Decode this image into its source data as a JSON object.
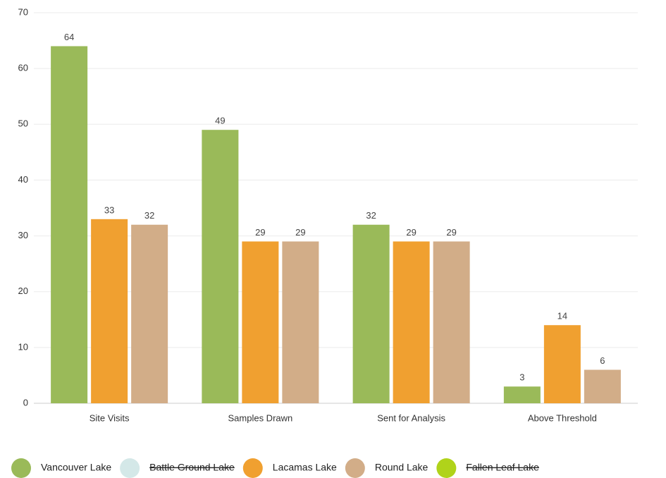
{
  "chart_data": {
    "type": "bar",
    "categories": [
      "Site Visits",
      "Samples Drawn",
      "Sent for Analysis",
      "Above Threshold"
    ],
    "series": [
      {
        "name": "Vancouver Lake",
        "color": "#9aba59",
        "values": [
          64,
          49,
          32,
          3
        ]
      },
      {
        "name": "Battle Ground Lake",
        "color": "#d4e8e8",
        "values": [
          null,
          null,
          null,
          null
        ],
        "hidden": true
      },
      {
        "name": "Lacamas Lake",
        "color": "#f0a030",
        "values": [
          33,
          29,
          29,
          14
        ]
      },
      {
        "name": "Round Lake",
        "color": "#d2ad88",
        "values": [
          32,
          29,
          29,
          6
        ]
      },
      {
        "name": "Fallen Leaf Lake",
        "color": "#b0d31a",
        "values": [
          null,
          null,
          null,
          null
        ],
        "hidden": true
      }
    ],
    "ylim": [
      0,
      70
    ],
    "yticks": [
      0,
      10,
      20,
      30,
      40,
      50,
      60,
      70
    ],
    "grid": true,
    "legend": "bottom"
  }
}
